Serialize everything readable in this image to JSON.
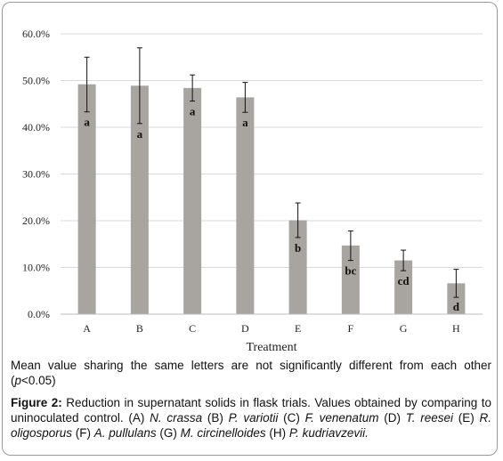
{
  "chart_data": {
    "type": "bar",
    "title": "",
    "xlabel": "Treatment",
    "ylabel": "",
    "categories": [
      "A",
      "B",
      "C",
      "D",
      "E",
      "F",
      "G",
      "H"
    ],
    "values": [
      49.2,
      48.9,
      48.4,
      46.4,
      20.1,
      14.7,
      11.5,
      6.6
    ],
    "error_low": [
      43.3,
      40.8,
      45.6,
      43.2,
      16.4,
      11.5,
      9.3,
      3.6
    ],
    "error_high": [
      55.0,
      57.0,
      51.2,
      49.6,
      23.8,
      17.8,
      13.7,
      9.6
    ],
    "significance": [
      "a",
      "a",
      "a",
      "a",
      "b",
      "bc",
      "cd",
      "d"
    ],
    "ylim": [
      0,
      60
    ],
    "yticks": [
      0,
      10,
      20,
      30,
      40,
      50,
      60
    ],
    "ytick_labels": [
      "0.0%",
      "10.0%",
      "20.0%",
      "30.0%",
      "40.0%",
      "50.0%",
      "60.0%"
    ],
    "grid": true,
    "bar_color": "#a8a4a0"
  },
  "note": {
    "text_1": "Mean value sharing the same letters are not significantly different from each other (",
    "p": "p",
    "text_2": "<0.05)"
  },
  "caption": {
    "label": "Figure 2:",
    "text": " Reduction in supernatant solids in flask trials.  Values obtained by comparing to uninoculated control. ",
    "items": [
      {
        "key": "(A) ",
        "name": "N. crassa"
      },
      {
        "key": " (B) ",
        "name": "P. variotii"
      },
      {
        "key": " (C) ",
        "name": "F. venenatum"
      },
      {
        "key": " (D) ",
        "name": "T. reesei"
      },
      {
        "key": " (E) ",
        "name": "R. oligosporus"
      },
      {
        "key": " (F) ",
        "name": "A. pullulans"
      },
      {
        "key": " (G) ",
        "name": "M. circinelloides"
      },
      {
        "key": " (H) ",
        "name": "P. kudriavzevii."
      }
    ]
  }
}
